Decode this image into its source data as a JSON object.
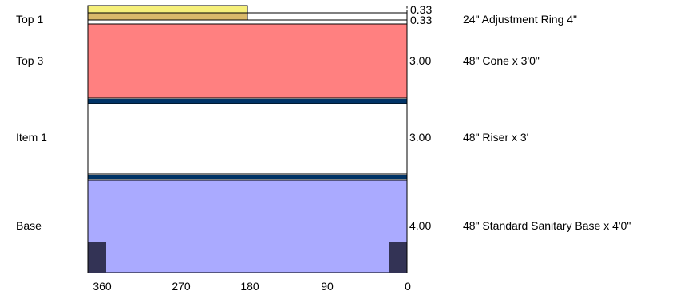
{
  "rows": [
    {
      "label": "Top 1",
      "dims": [
        "0.33",
        "0.33"
      ],
      "description": "24\" Adjustment Ring 4\""
    },
    {
      "label": "Top 3",
      "dim": "3.00",
      "description": "48\" Cone x 3'0\""
    },
    {
      "label": "Item 1",
      "dim": "3.00",
      "description": "48\" Riser x 3'"
    },
    {
      "label": "Base",
      "dim": "4.00",
      "description": "48\" Standard Sanitary Base x 4'0\""
    }
  ],
  "axis": {
    "ticks": [
      "360",
      "270",
      "180",
      "90",
      "0"
    ]
  },
  "colors": {
    "ring_top": "#f5ef7a",
    "ring_bottom": "#d9b96a",
    "cone": "#ff8080",
    "riser": "#ffffff",
    "base": "#aaaaff",
    "joint": "#003366",
    "foot": "#333355",
    "outline": "#000000"
  }
}
